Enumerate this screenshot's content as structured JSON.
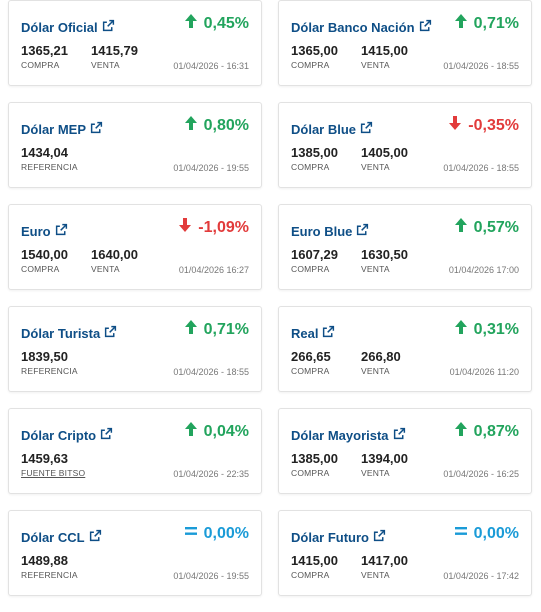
{
  "colors": {
    "title": "#0e4e86",
    "up": "#22a45d",
    "down": "#e23b3b",
    "eq": "#1a9bd7"
  },
  "cards": [
    {
      "title": "Dólar Oficial",
      "change": "0,45%",
      "dir": "up",
      "values": [
        {
          "num": "1365,21",
          "lbl": "COMPRA"
        },
        {
          "num": "1415,79",
          "lbl": "VENTA"
        }
      ],
      "ts": "01/04/2026 - 16:31"
    },
    {
      "title": "Dólar Banco Nación",
      "change": "0,71%",
      "dir": "up",
      "values": [
        {
          "num": "1365,00",
          "lbl": "COMPRA"
        },
        {
          "num": "1415,00",
          "lbl": "VENTA"
        }
      ],
      "ts": "01/04/2026 - 18:55"
    },
    {
      "title": "Dólar MEP",
      "change": "0,80%",
      "dir": "up",
      "values": [
        {
          "num": "1434,04",
          "lbl": "REFERENCIA"
        }
      ],
      "ts": "01/04/2026 - 19:55"
    },
    {
      "title": "Dólar Blue",
      "change": "-0,35%",
      "dir": "down",
      "values": [
        {
          "num": "1385,00",
          "lbl": "COMPRA"
        },
        {
          "num": "1405,00",
          "lbl": "VENTA"
        }
      ],
      "ts": "01/04/2026 - 18:55"
    },
    {
      "title": "Euro",
      "change": "-1,09%",
      "dir": "down",
      "values": [
        {
          "num": "1540,00",
          "lbl": "COMPRA"
        },
        {
          "num": "1640,00",
          "lbl": "VENTA"
        }
      ],
      "ts": "01/04/2026 16:27"
    },
    {
      "title": "Euro Blue",
      "change": "0,57%",
      "dir": "up",
      "values": [
        {
          "num": "1607,29",
          "lbl": "COMPRA"
        },
        {
          "num": "1630,50",
          "lbl": "VENTA"
        }
      ],
      "ts": "01/04/2026 17:00"
    },
    {
      "title": "Dólar Turista",
      "change": "0,71%",
      "dir": "up",
      "values": [
        {
          "num": "1839,50",
          "lbl": "REFERENCIA"
        }
      ],
      "ts": "01/04/2026 - 18:55"
    },
    {
      "title": "Real",
      "change": "0,31%",
      "dir": "up",
      "values": [
        {
          "num": "266,65",
          "lbl": "COMPRA"
        },
        {
          "num": "266,80",
          "lbl": "VENTA"
        }
      ],
      "ts": "01/04/2026 11:20"
    },
    {
      "title": "Dólar Cripto",
      "change": "0,04%",
      "dir": "up",
      "values": [
        {
          "num": "1459,63",
          "lbl": "FUENTE BITSO",
          "link": true
        }
      ],
      "ts": "01/04/2026 - 22:35"
    },
    {
      "title": "Dólar Mayorista",
      "change": "0,87%",
      "dir": "up",
      "values": [
        {
          "num": "1385,00",
          "lbl": "COMPRA"
        },
        {
          "num": "1394,00",
          "lbl": "VENTA"
        }
      ],
      "ts": "01/04/2026 - 16:25"
    },
    {
      "title": "Dólar CCL",
      "change": "0,00%",
      "dir": "eq",
      "values": [
        {
          "num": "1489,88",
          "lbl": "REFERENCIA"
        }
      ],
      "ts": "01/04/2026 - 19:55"
    },
    {
      "title": "Dólar Futuro",
      "change": "0,00%",
      "dir": "eq",
      "values": [
        {
          "num": "1415,00",
          "lbl": "COMPRA"
        },
        {
          "num": "1417,00",
          "lbl": "VENTA"
        }
      ],
      "ts": "01/04/2026 - 17:42"
    }
  ]
}
